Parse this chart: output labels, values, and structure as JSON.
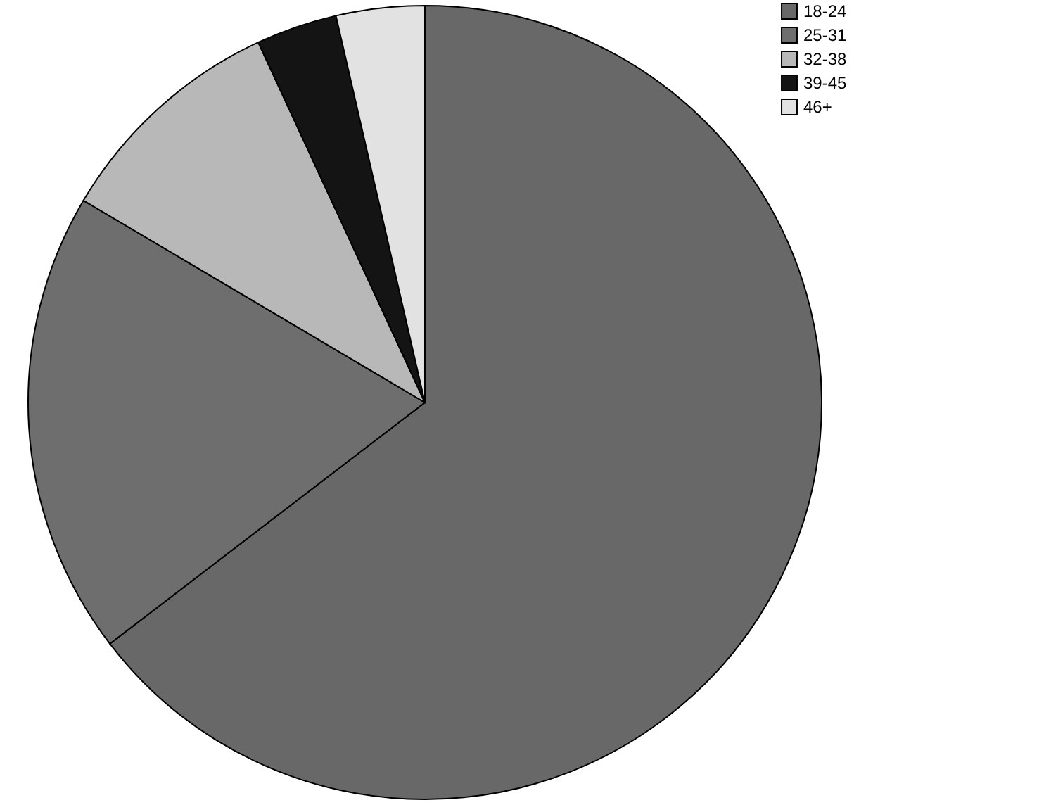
{
  "chart_data": {
    "type": "pie",
    "categories": [
      "18-24",
      "25-31",
      "32-38",
      "39-45",
      "46+"
    ],
    "values": [
      64.6,
      18.9,
      9.6,
      3.3,
      3.6
    ],
    "colors": [
      "#686868",
      "#6e6e6e",
      "#b8b8b8",
      "#141414",
      "#e2e2e2"
    ],
    "legend": "top right"
  }
}
